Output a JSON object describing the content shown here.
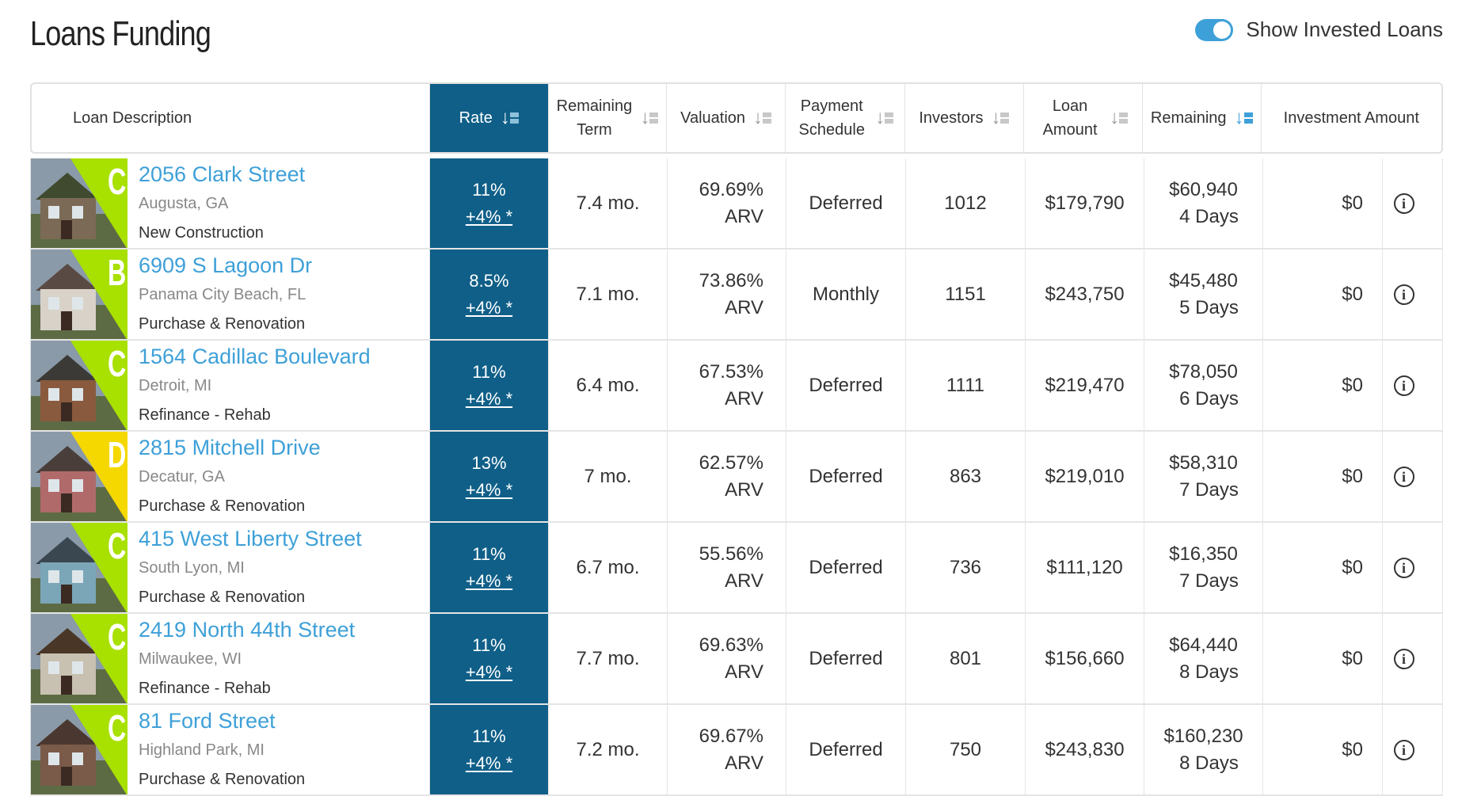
{
  "page": {
    "title": "Loans Funding"
  },
  "toggle": {
    "label": "Show Invested Loans",
    "on": true
  },
  "headers": {
    "description": "Loan Description",
    "rate": "Rate",
    "remaining_term": "Remaining Term",
    "valuation": "Valuation",
    "payment_schedule": "Payment Schedule",
    "investors": "Investors",
    "loan_amount": "Loan Amount",
    "remaining": "Remaining",
    "investment_amount": "Investment Amount"
  },
  "colors": {
    "rate_bg": "#0f5f88",
    "link": "#3ea0d8",
    "grade_c": "#a8e000",
    "grade_b": "#a8e000",
    "grade_d": "#f5d800"
  },
  "rows": [
    {
      "address": "2056 Clark Street",
      "city": "Augusta, GA",
      "type": "New Construction",
      "grade": "C",
      "rate": "11%",
      "bonus": "+4% *",
      "term": "7.4 mo.",
      "valuation": "69.69%",
      "valuation_basis": "ARV",
      "schedule": "Deferred",
      "investors": "1012",
      "loan_amount": "$179,790",
      "remaining_amount": "$60,940",
      "remaining_days": "4 Days",
      "investment": "$0"
    },
    {
      "address": "6909 S Lagoon Dr",
      "city": "Panama City Beach, FL",
      "type": "Purchase & Renovation",
      "grade": "B",
      "rate": "8.5%",
      "bonus": "+4% *",
      "term": "7.1 mo.",
      "valuation": "73.86%",
      "valuation_basis": "ARV",
      "schedule": "Monthly",
      "investors": "1151",
      "loan_amount": "$243,750",
      "remaining_amount": "$45,480",
      "remaining_days": "5 Days",
      "investment": "$0"
    },
    {
      "address": "1564 Cadillac Boulevard",
      "city": "Detroit, MI",
      "type": "Refinance - Rehab",
      "grade": "C",
      "rate": "11%",
      "bonus": "+4% *",
      "term": "6.4 mo.",
      "valuation": "67.53%",
      "valuation_basis": "ARV",
      "schedule": "Deferred",
      "investors": "1111",
      "loan_amount": "$219,470",
      "remaining_amount": "$78,050",
      "remaining_days": "6 Days",
      "investment": "$0"
    },
    {
      "address": "2815 Mitchell Drive",
      "city": "Decatur, GA",
      "type": "Purchase & Renovation",
      "grade": "D",
      "rate": "13%",
      "bonus": "+4% *",
      "term": "7 mo.",
      "valuation": "62.57%",
      "valuation_basis": "ARV",
      "schedule": "Deferred",
      "investors": "863",
      "loan_amount": "$219,010",
      "remaining_amount": "$58,310",
      "remaining_days": "7 Days",
      "investment": "$0"
    },
    {
      "address": "415 West Liberty Street",
      "city": "South Lyon, MI",
      "type": "Purchase & Renovation",
      "grade": "C",
      "rate": "11%",
      "bonus": "+4% *",
      "term": "6.7 mo.",
      "valuation": "55.56%",
      "valuation_basis": "ARV",
      "schedule": "Deferred",
      "investors": "736",
      "loan_amount": "$111,120",
      "remaining_amount": "$16,350",
      "remaining_days": "7 Days",
      "investment": "$0"
    },
    {
      "address": "2419 North 44th Street",
      "city": "Milwaukee, WI",
      "type": "Refinance - Rehab",
      "grade": "C",
      "rate": "11%",
      "bonus": "+4% *",
      "term": "7.7 mo.",
      "valuation": "69.63%",
      "valuation_basis": "ARV",
      "schedule": "Deferred",
      "investors": "801",
      "loan_amount": "$156,660",
      "remaining_amount": "$64,440",
      "remaining_days": "8 Days",
      "investment": "$0"
    },
    {
      "address": "81 Ford Street",
      "city": "Highland Park, MI",
      "type": "Purchase & Renovation",
      "grade": "C",
      "rate": "11%",
      "bonus": "+4% *",
      "term": "7.2 mo.",
      "valuation": "69.67%",
      "valuation_basis": "ARV",
      "schedule": "Deferred",
      "investors": "750",
      "loan_amount": "$243,830",
      "remaining_amount": "$160,230",
      "remaining_days": "8 Days",
      "investment": "$0"
    }
  ]
}
